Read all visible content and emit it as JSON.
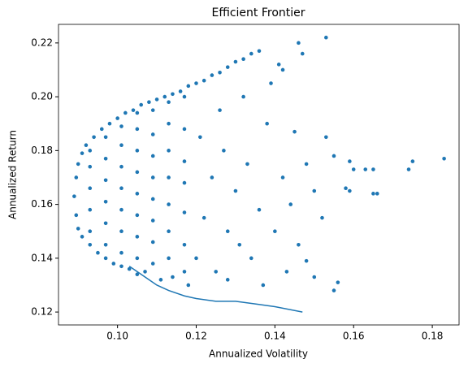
{
  "chart_data": {
    "type": "scatter",
    "title": "Efficient Frontier",
    "x_label": "Annualized Volatility",
    "y_label": "Annualized Return",
    "xlim": [
      0.085,
      0.1868
    ],
    "ylim": [
      0.1152,
      0.2269
    ],
    "xticks": [
      {
        "value": 0.1,
        "label": "0.10"
      },
      {
        "value": 0.12,
        "label": "0.12"
      },
      {
        "value": 0.14,
        "label": "0.14"
      },
      {
        "value": 0.16,
        "label": "0.16"
      },
      {
        "value": 0.18,
        "label": "0.18"
      }
    ],
    "yticks": [
      {
        "value": 0.12,
        "label": "0.12"
      },
      {
        "value": 0.14,
        "label": "0.14"
      },
      {
        "value": 0.16,
        "label": "0.16"
      },
      {
        "value": 0.18,
        "label": "0.18"
      },
      {
        "value": 0.2,
        "label": "0.20"
      },
      {
        "value": 0.22,
        "label": "0.22"
      }
    ],
    "grid": false,
    "series": [
      {
        "type": "scatter",
        "color": "#1f77b4",
        "x": [
          0.0895,
          0.09,
          0.091,
          0.092,
          0.094,
          0.096,
          0.098,
          0.1,
          0.102,
          0.104,
          0.106,
          0.108,
          0.11,
          0.112,
          0.114,
          0.116,
          0.118,
          0.12,
          0.122,
          0.124,
          0.126,
          0.128,
          0.13,
          0.132,
          0.134,
          0.136,
          0.0895,
          0.09,
          0.091,
          0.093,
          0.095,
          0.097,
          0.099,
          0.101,
          0.103,
          0.105,
          0.089,
          0.093,
          0.093,
          0.093,
          0.093,
          0.093,
          0.097,
          0.097,
          0.097,
          0.097,
          0.097,
          0.097,
          0.101,
          0.101,
          0.101,
          0.101,
          0.101,
          0.101,
          0.101,
          0.105,
          0.105,
          0.105,
          0.105,
          0.105,
          0.105,
          0.105,
          0.105,
          0.109,
          0.109,
          0.109,
          0.109,
          0.109,
          0.109,
          0.109,
          0.109,
          0.113,
          0.113,
          0.113,
          0.113,
          0.113,
          0.113,
          0.113,
          0.117,
          0.117,
          0.117,
          0.117,
          0.117,
          0.117,
          0.117,
          0.12,
          0.122,
          0.124,
          0.121,
          0.126,
          0.128,
          0.13,
          0.127,
          0.132,
          0.134,
          0.136,
          0.133,
          0.138,
          0.14,
          0.142,
          0.139,
          0.141,
          0.144,
          0.146,
          0.148,
          0.145,
          0.15,
          0.152,
          0.153,
          0.146,
          0.147,
          0.142,
          0.155,
          0.153,
          0.158,
          0.16,
          0.163,
          0.165,
          0.166,
          0.159,
          0.155,
          0.156,
          0.15,
          0.148,
          0.137,
          0.143,
          0.174,
          0.175,
          0.183,
          0.159,
          0.165,
          0.131,
          0.125,
          0.128,
          0.118,
          0.114,
          0.111,
          0.107
        ],
        "values": [
          0.17,
          0.175,
          0.179,
          0.182,
          0.185,
          0.188,
          0.19,
          0.192,
          0.194,
          0.195,
          0.197,
          0.198,
          0.199,
          0.2,
          0.201,
          0.202,
          0.204,
          0.205,
          0.206,
          0.208,
          0.209,
          0.211,
          0.213,
          0.214,
          0.216,
          0.217,
          0.156,
          0.151,
          0.148,
          0.145,
          0.142,
          0.14,
          0.138,
          0.137,
          0.136,
          0.134,
          0.163,
          0.15,
          0.158,
          0.166,
          0.174,
          0.18,
          0.145,
          0.153,
          0.161,
          0.169,
          0.177,
          0.185,
          0.142,
          0.15,
          0.158,
          0.166,
          0.174,
          0.182,
          0.189,
          0.14,
          0.148,
          0.156,
          0.164,
          0.172,
          0.18,
          0.188,
          0.194,
          0.138,
          0.146,
          0.154,
          0.162,
          0.17,
          0.178,
          0.186,
          0.195,
          0.14,
          0.15,
          0.16,
          0.17,
          0.18,
          0.19,
          0.198,
          0.135,
          0.145,
          0.157,
          0.168,
          0.176,
          0.188,
          0.2,
          0.14,
          0.155,
          0.17,
          0.185,
          0.195,
          0.15,
          0.165,
          0.18,
          0.2,
          0.14,
          0.158,
          0.175,
          0.19,
          0.15,
          0.17,
          0.205,
          0.212,
          0.16,
          0.145,
          0.175,
          0.187,
          0.165,
          0.155,
          0.222,
          0.22,
          0.216,
          0.21,
          0.178,
          0.185,
          0.166,
          0.173,
          0.173,
          0.164,
          0.164,
          0.176,
          0.128,
          0.131,
          0.133,
          0.139,
          0.13,
          0.135,
          0.173,
          0.176,
          0.177,
          0.165,
          0.173,
          0.145,
          0.135,
          0.132,
          0.13,
          0.133,
          0.132,
          0.135
        ]
      },
      {
        "type": "line",
        "color": "#1f77b4",
        "x": [
          0.103,
          0.107,
          0.11,
          0.113,
          0.117,
          0.12,
          0.125,
          0.13,
          0.135,
          0.14,
          0.147
        ],
        "values": [
          0.137,
          0.133,
          0.13,
          0.128,
          0.126,
          0.125,
          0.124,
          0.124,
          0.123,
          0.122,
          0.12
        ]
      }
    ]
  }
}
